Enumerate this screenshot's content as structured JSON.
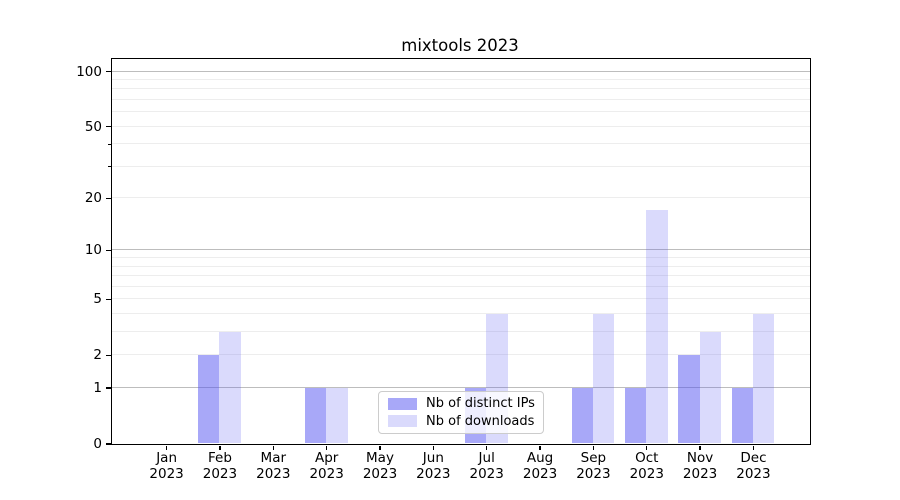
{
  "chart_data": {
    "type": "bar",
    "title": "mixtools 2023",
    "categories": [
      "Jan",
      "Feb",
      "Mar",
      "Apr",
      "May",
      "Jun",
      "Jul",
      "Aug",
      "Sep",
      "Oct",
      "Nov",
      "Dec"
    ],
    "year_label": "2023",
    "series": [
      {
        "name": "Nb of distinct IPs",
        "color": "rgba(82,82,242,0.50)",
        "hex_on_white": "#a6a6f6",
        "values": [
          0,
          2,
          0,
          1,
          0,
          0,
          1,
          0,
          1,
          1,
          2,
          1
        ]
      },
      {
        "name": "Nb of downloads",
        "color": "rgba(82,82,242,0.21)",
        "hex_on_white": "#dadaf9",
        "values": [
          0,
          3,
          0,
          1,
          0,
          0,
          4,
          0,
          4,
          17,
          3,
          4
        ]
      }
    ],
    "yticks": [
      0,
      1,
      2,
      5,
      10,
      20,
      50,
      100
    ],
    "yticks_minor": [
      30,
      40
    ],
    "grid_major": [
      1,
      10,
      100
    ],
    "grid_minor": [
      2,
      3,
      4,
      5,
      6,
      7,
      8,
      9,
      20,
      30,
      40,
      50,
      60,
      70,
      80,
      90
    ],
    "scale": "log1p",
    "ylim": [
      0,
      117
    ],
    "grid": "on",
    "legend": {
      "position": "lower center",
      "frame": true,
      "framealpha": 0.8
    },
    "colors": {
      "distinct_ips_bar": "#a6a6f6",
      "downloads_bar": "#dadaf9",
      "grid_major": "#bdbdbd",
      "grid_minor": "#ededed",
      "axis": "#000000"
    }
  }
}
